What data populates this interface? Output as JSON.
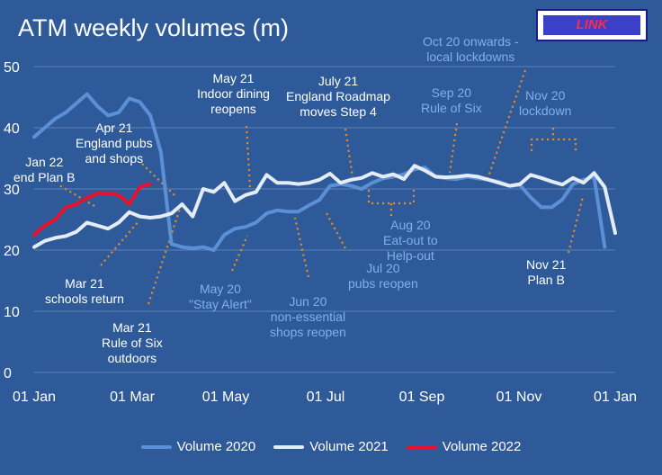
{
  "title": "ATM weekly volumes (m)",
  "logo": {
    "text": "LINK"
  },
  "chart_data": {
    "type": "line",
    "title": "ATM weekly volumes (m)",
    "ylim": [
      0,
      50
    ],
    "yticks": [
      "0",
      "10",
      "20",
      "30",
      "40",
      "50"
    ],
    "xticks": [
      "01 Jan",
      "01 Mar",
      "01 May",
      "01 Jul",
      "01 Sep",
      "01 Nov",
      "01 Jan"
    ],
    "grid": "horizontal",
    "legend_position": "bottom",
    "series": [
      {
        "name": "Volume 2020",
        "color": "#5b8fd6",
        "values": [
          38.5,
          40,
          41.5,
          42.5,
          44,
          45.5,
          43.5,
          42,
          42.5,
          44.8,
          44.2,
          42,
          36,
          21,
          20.5,
          20.3,
          20.5,
          20,
          22.5,
          23.5,
          23.8,
          24.5,
          26,
          26.5,
          26.3,
          26.3,
          27.3,
          28.2,
          30.5,
          30.8,
          30.5,
          30,
          31,
          31.7,
          32,
          32.4,
          33.2,
          33.5,
          32,
          31.7,
          31.6,
          32,
          31.7,
          31.5,
          31.2,
          30.5,
          30.6,
          28.6,
          27,
          27,
          28.3,
          30.8,
          31.5,
          32,
          20.5
        ]
      },
      {
        "name": "Volume 2021",
        "color": "#e4ecf6",
        "values": [
          20.5,
          21.5,
          22,
          22.3,
          23,
          24.5,
          24,
          23.5,
          24.5,
          26.2,
          25.5,
          25.3,
          25.5,
          26,
          27.5,
          25.5,
          30,
          29.5,
          31,
          28,
          29,
          29.5,
          32.3,
          31,
          31,
          30.8,
          31,
          31.5,
          32.5,
          31,
          31.5,
          31.8,
          32.6,
          32,
          32.4,
          31.6,
          33.8,
          33,
          32,
          31.9,
          32,
          32.2,
          32,
          31.5,
          31,
          30.5,
          30.8,
          32.3,
          31.8,
          31.2,
          30.7,
          31.8,
          31,
          32.6,
          30.3,
          22.8
        ]
      },
      {
        "name": "Volume 2022",
        "color": "#e8102a",
        "values": [
          22.5,
          24,
          25,
          27,
          27.5,
          28.5,
          29.3,
          29.3,
          29,
          27.5,
          30.3,
          30.8
        ]
      }
    ],
    "annotations": [
      {
        "text": "Jan 22\nend Plan B",
        "color": "white"
      },
      {
        "text": "Apr 21\nEngland pubs\nand shops",
        "color": "white"
      },
      {
        "text": "Mar 21\nschools return",
        "color": "white"
      },
      {
        "text": "Mar 21\nRule of Six\noutdoors",
        "color": "white"
      },
      {
        "text": "May 21\nIndoor dining\nreopens",
        "color": "white"
      },
      {
        "text": "July 21\nEngland Roadmap\nmoves Step 4",
        "color": "white"
      },
      {
        "text": "Nov 21\nPlan B",
        "color": "white"
      },
      {
        "text": "May 20\n\"Stay Alert\"",
        "color": "blue"
      },
      {
        "text": "Jun 20\nnon-essential\nshops reopen",
        "color": "blue"
      },
      {
        "text": "Jul 20\npubs reopen",
        "color": "blue"
      },
      {
        "text": "Aug 20\nEat-out to\nHelp-out",
        "color": "blue"
      },
      {
        "text": "Sep 20\nRule of Six",
        "color": "blue"
      },
      {
        "text": "Oct 20 onwards -\nlocal lockdowns",
        "color": "blue"
      },
      {
        "text": "Nov 20\nlockdown",
        "color": "blue"
      }
    ]
  }
}
